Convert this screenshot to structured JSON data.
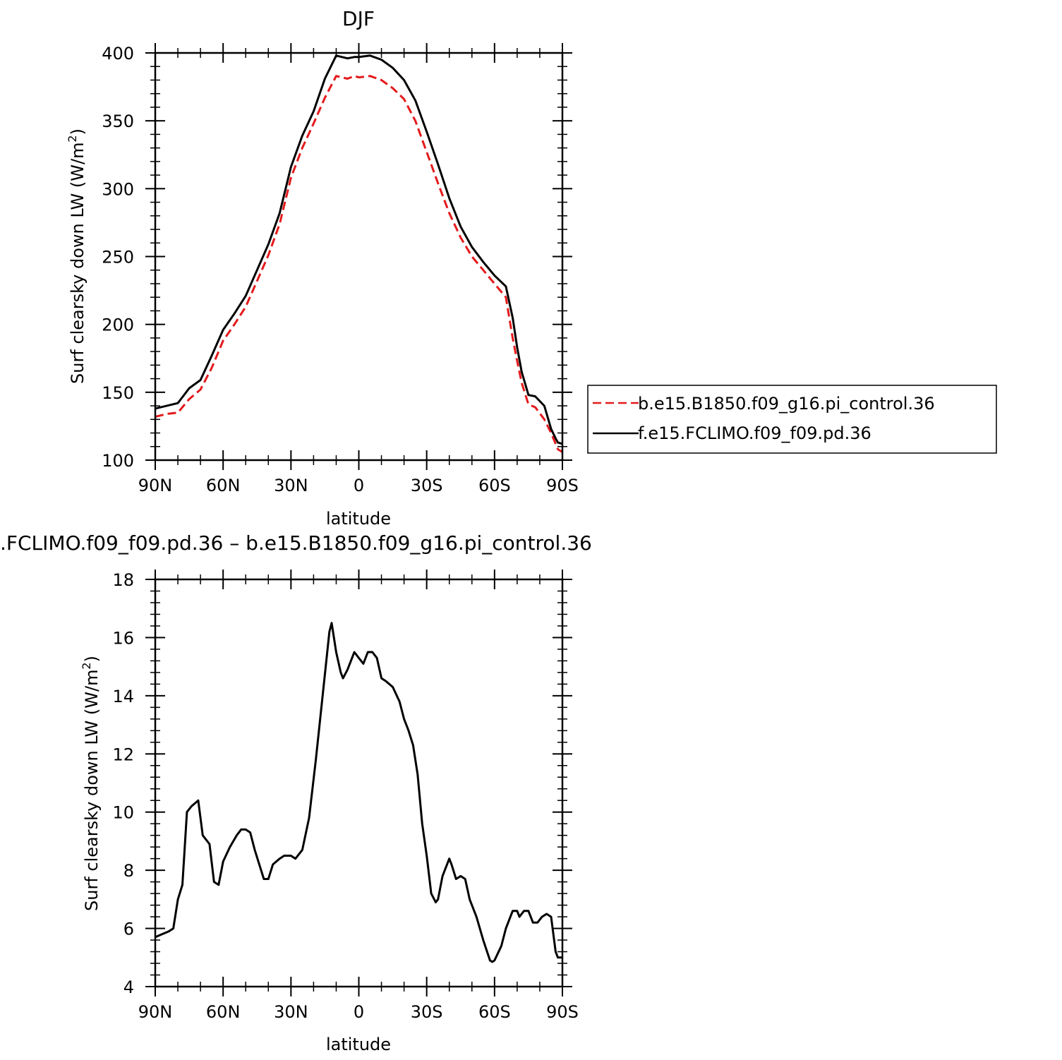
{
  "chart_data": [
    {
      "type": "line",
      "title": "DJF",
      "xlabel": "latitude",
      "ylabel_main": "Surf clearsky down LW (W/m",
      "ylabel_sup": "2",
      "ylabel_tail": ")",
      "xlim": [
        90,
        -90
      ],
      "ylim": [
        100,
        400
      ],
      "x_ticks": [
        90,
        60,
        30,
        0,
        -30,
        -60,
        -90
      ],
      "x_tick_labels": [
        "90N",
        "60N",
        "30N",
        "0",
        "30S",
        "60S",
        "90S"
      ],
      "y_ticks": [
        100,
        150,
        200,
        250,
        300,
        350,
        400
      ],
      "y_tick_labels": [
        "100",
        "150",
        "200",
        "250",
        "300",
        "350",
        "400"
      ],
      "legend_position": "right",
      "series": [
        {
          "name": "b.e15.B1850.f09_g16.pi_control.36",
          "color": "#e41a1c",
          "dash": "dashed",
          "x": [
            90,
            85,
            80,
            75,
            70,
            65,
            60,
            55,
            50,
            45,
            40,
            35,
            30,
            25,
            20,
            15,
            10,
            5,
            2,
            0,
            -5,
            -10,
            -15,
            -20,
            -25,
            -30,
            -35,
            -40,
            -45,
            -50,
            -55,
            -60,
            -65,
            -68,
            -70,
            -72,
            -75,
            -78,
            -82,
            -85,
            -87,
            -88,
            -90
          ],
          "y": [
            132,
            134,
            135,
            145,
            152,
            168,
            188,
            200,
            213,
            232,
            251,
            274,
            308,
            330,
            348,
            367,
            383,
            381,
            383,
            382,
            383,
            380,
            374,
            366,
            350,
            327,
            304,
            282,
            264,
            250,
            240,
            230,
            220,
            190,
            173,
            157,
            141,
            139,
            130,
            120,
            112,
            108,
            106
          ]
        },
        {
          "name": "f.e15.FCLIMO.f09_f09.pd.36",
          "color": "#000000",
          "dash": "solid",
          "x": [
            90,
            85,
            80,
            75,
            70,
            65,
            60,
            55,
            50,
            45,
            40,
            35,
            30,
            25,
            20,
            15,
            10,
            5,
            2,
            0,
            -5,
            -10,
            -15,
            -20,
            -25,
            -30,
            -35,
            -40,
            -45,
            -50,
            -55,
            -60,
            -65,
            -68,
            -70,
            -72,
            -75,
            -78,
            -82,
            -85,
            -87,
            -88,
            -90
          ],
          "y": [
            138,
            140,
            142,
            153,
            159,
            177,
            196,
            208,
            221,
            240,
            259,
            282,
            316,
            339,
            357,
            381,
            398,
            396,
            397,
            397,
            398,
            395,
            389,
            380,
            365,
            342,
            318,
            293,
            272,
            257,
            246,
            236,
            228,
            205,
            183,
            165,
            148,
            147,
            140,
            123,
            116,
            113,
            112
          ]
        }
      ]
    },
    {
      "type": "line",
      "title": ".FCLIMO.f09_f09.pd.36 – b.e15.B1850.f09_g16.pi_control.36",
      "xlabel": "latitude",
      "ylabel_main": "Surf clearsky down LW (W/m",
      "ylabel_sup": "2",
      "ylabel_tail": ")",
      "xlim": [
        90,
        -90
      ],
      "ylim": [
        4,
        18
      ],
      "x_ticks": [
        90,
        60,
        30,
        0,
        -30,
        -60,
        -90
      ],
      "x_tick_labels": [
        "90N",
        "60N",
        "30N",
        "0",
        "30S",
        "60S",
        "90S"
      ],
      "y_ticks": [
        4,
        6,
        8,
        10,
        12,
        14,
        16,
        18
      ],
      "y_tick_labels": [
        "4",
        "6",
        "8",
        "10",
        "12",
        "14",
        "16",
        "18"
      ],
      "series": [
        {
          "color": "#000000",
          "dash": "solid",
          "x": [
            90,
            87,
            84,
            82,
            80,
            78,
            76,
            74,
            71,
            69,
            66,
            64,
            62,
            60,
            57,
            54,
            52,
            50,
            48,
            46,
            42,
            40,
            38,
            35,
            33,
            30,
            28,
            25,
            22,
            19,
            16,
            13,
            12,
            10,
            8,
            7,
            5,
            3,
            2,
            0,
            -2,
            -4,
            -6,
            -8,
            -10,
            -12,
            -15,
            -18,
            -20,
            -22,
            -24,
            -26,
            -28,
            -30,
            -32,
            -34,
            -35,
            -37,
            -40,
            -41,
            -43,
            -45,
            -47,
            -49,
            -52,
            -55,
            -58,
            -59,
            -60,
            -63,
            -65,
            -68,
            -70,
            -71,
            -73,
            -75,
            -77,
            -79,
            -81,
            -83,
            -85,
            -87,
            -88,
            -90
          ],
          "y": [
            5.7,
            5.8,
            5.9,
            6.0,
            7.0,
            7.5,
            10.0,
            10.2,
            10.4,
            9.2,
            8.9,
            7.6,
            7.5,
            8.3,
            8.8,
            9.2,
            9.4,
            9.4,
            9.3,
            8.7,
            7.7,
            7.7,
            8.2,
            8.4,
            8.5,
            8.5,
            8.4,
            8.7,
            9.8,
            11.8,
            14.0,
            16.2,
            16.5,
            15.5,
            14.8,
            14.6,
            14.9,
            15.3,
            15.5,
            15.3,
            15.1,
            15.5,
            15.5,
            15.3,
            14.6,
            14.5,
            14.3,
            13.8,
            13.2,
            12.8,
            12.3,
            11.3,
            9.6,
            8.5,
            7.2,
            6.9,
            7.0,
            7.8,
            8.4,
            8.2,
            7.7,
            7.8,
            7.7,
            7.0,
            6.4,
            5.6,
            4.9,
            4.85,
            4.9,
            5.4,
            6.0,
            6.6,
            6.6,
            6.4,
            6.6,
            6.6,
            6.2,
            6.2,
            6.4,
            6.5,
            6.4,
            5.2,
            5.0,
            5.0
          ]
        }
      ]
    }
  ]
}
